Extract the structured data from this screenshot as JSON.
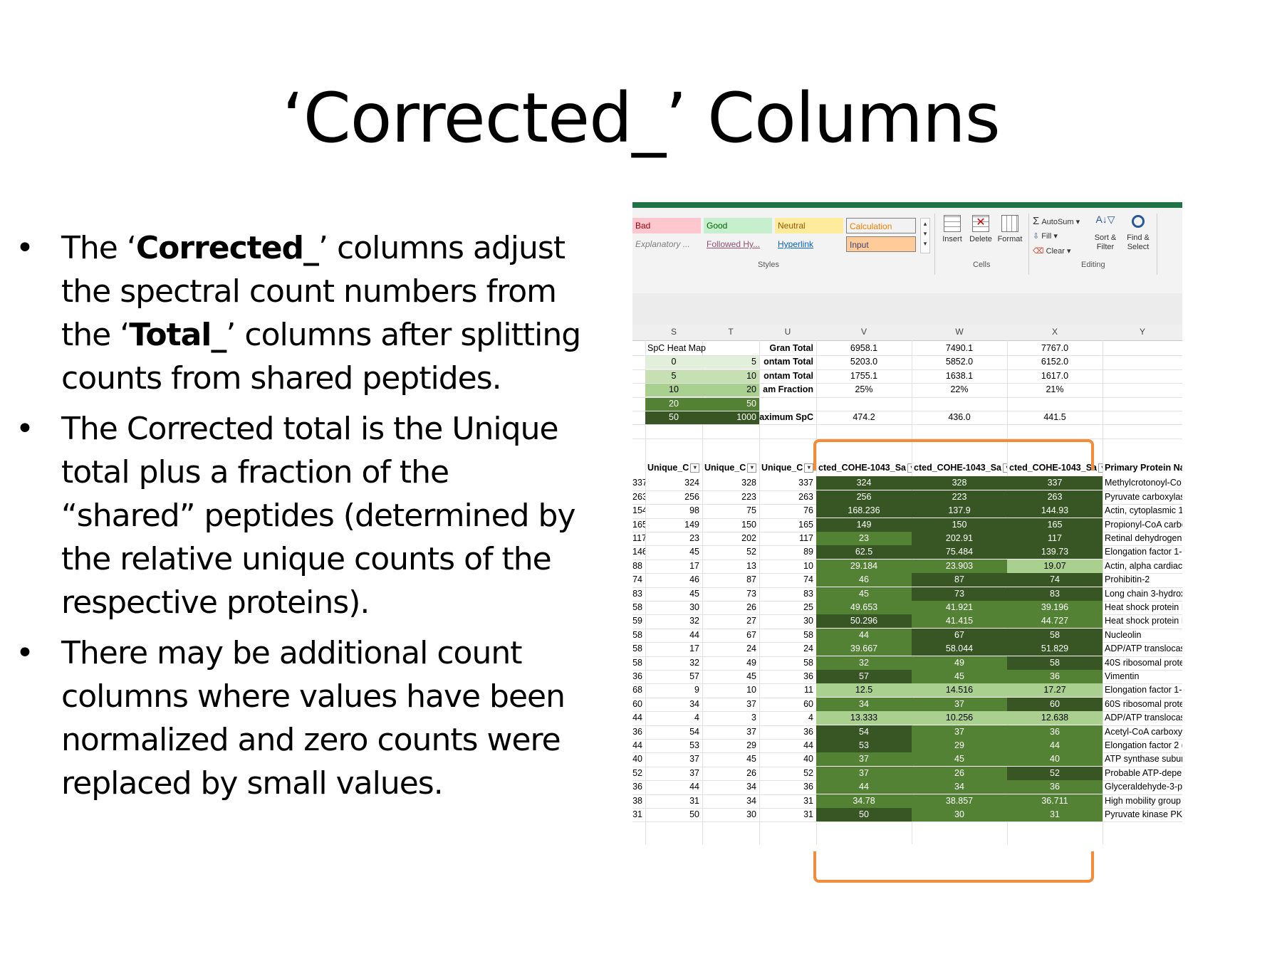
{
  "slide": {
    "title": "‘Corrected_’ Columns",
    "bullets": [
      {
        "pre": "The ‘",
        "b1": "Corrected_",
        "mid": "’ columns adjust the spectral count numbers from the ‘",
        "b2": "Total_",
        "post": "’ columns after splitting counts from shared peptides."
      },
      {
        "text": "The Corrected total is the Unique total plus a fraction of the “shared” peptides (determined by the relative unique counts of the respective proteins)."
      },
      {
        "text": "There may be additional count columns where values have been normalized and zero counts were replaced by small values."
      }
    ],
    "bullet_char": "•"
  },
  "ribbon": {
    "styles": {
      "bad": "Bad",
      "good": "Good",
      "neutral": "Neutral",
      "calculation": "Calculation",
      "explanatory": "Explanatory ...",
      "followed": "Followed Hy...",
      "hyperlink": "Hyperlink",
      "input": "Input",
      "group_label": "Styles"
    },
    "cells": {
      "insert": "Insert",
      "delete": "Delete",
      "format": "Format",
      "group_label": "Cells"
    },
    "editing": {
      "autosum": "AutoSum",
      "fill": "Fill",
      "clear": "Clear",
      "sort": "Sort & Filter",
      "find": "Find & Select",
      "group_label": "Editing"
    },
    "colors": {
      "bad_bg": "#ffc7ce",
      "bad_fg": "#9c0006",
      "good_bg": "#c6efce",
      "good_fg": "#006100",
      "neutral_bg": "#ffeb9c",
      "neutral_fg": "#9c5700",
      "calc_bg": "#f2f2f2",
      "calc_fg": "#fa7d00",
      "input_bg": "#ffcc99",
      "input_fg": "#3f3f76"
    }
  },
  "sheet": {
    "col_headers": [
      "S",
      "T",
      "U",
      "V",
      "W",
      "X",
      "Y"
    ],
    "heatmap_title": "SpC Heat Map",
    "heatmap_rows": [
      {
        "lo": "0",
        "hi": "5",
        "bg": "#e2efda"
      },
      {
        "lo": "5",
        "hi": "10",
        "bg": "#c6e0b4"
      },
      {
        "lo": "10",
        "hi": "20",
        "bg": "#a9d08e"
      },
      {
        "lo": "20",
        "hi": "50",
        "bg": "#548235"
      },
      {
        "lo": "50",
        "hi": "1000",
        "bg": "#375623"
      }
    ],
    "summary": [
      {
        "label": "Gran Total",
        "v": "6958.1",
        "w": "7490.1",
        "x": "7767.0"
      },
      {
        "label": "ontam Total",
        "v": "5203.0",
        "w": "5852.0",
        "x": "6152.0"
      },
      {
        "label": "ontam Total",
        "v": "1755.1",
        "w": "1638.1",
        "x": "1617.0"
      },
      {
        "label": "am Fraction",
        "v": "25%",
        "w": "22%",
        "x": "21%"
      },
      {
        "label": "",
        "v": "",
        "w": "",
        "x": ""
      },
      {
        "label": "aximum SpC",
        "v": "474.2",
        "w": "436.0",
        "x": "441.5"
      }
    ],
    "table_headers": [
      "",
      "Unique_C",
      "Unique_C",
      "Unique_C",
      "cted_COHE-1043_Sa",
      "cted_COHE-1043_Sa",
      "cted_COHE-1043_Sa",
      "Primary Protein Nar"
    ],
    "rows": [
      [
        "337",
        "324",
        "328",
        "337",
        "324",
        "328",
        "337",
        "Methylcrotonoyl-Co"
      ],
      [
        "263",
        "256",
        "223",
        "263",
        "256",
        "223",
        "263",
        "Pyruvate carboxylas"
      ],
      [
        "154",
        "98",
        "75",
        "76",
        "168.236",
        "137.9",
        "144.93",
        "Actin, cytoplasmic 1"
      ],
      [
        "165",
        "149",
        "150",
        "165",
        "149",
        "150",
        "165",
        "Propionyl-CoA carbo"
      ],
      [
        "117",
        "23",
        "202",
        "117",
        "23",
        "202.91",
        "117",
        "Retinal dehydrogen"
      ],
      [
        "146",
        "45",
        "52",
        "89",
        "62.5",
        "75.484",
        "139.73",
        "Elongation factor 1-"
      ],
      [
        "88",
        "17",
        "13",
        "10",
        "29.184",
        "23.903",
        "19.07",
        "Actin, alpha cardiac"
      ],
      [
        "74",
        "46",
        "87",
        "74",
        "46",
        "87",
        "74",
        "Prohibitin-2"
      ],
      [
        "83",
        "45",
        "73",
        "83",
        "45",
        "73",
        "83",
        "Long chain 3-hydrox"
      ],
      [
        "58",
        "30",
        "26",
        "25",
        "49.653",
        "41.921",
        "39.196",
        "Heat shock protein I"
      ],
      [
        "59",
        "32",
        "27",
        "30",
        "50.296",
        "41.415",
        "44.727",
        "Heat shock protein I"
      ],
      [
        "58",
        "44",
        "67",
        "58",
        "44",
        "67",
        "58",
        "Nucleolin"
      ],
      [
        "58",
        "17",
        "24",
        "24",
        "39.667",
        "58.044",
        "51.829",
        "ADP/ATP translocas"
      ],
      [
        "58",
        "32",
        "49",
        "58",
        "32",
        "49",
        "58",
        "40S ribosomal prote"
      ],
      [
        "36",
        "57",
        "45",
        "36",
        "57",
        "45",
        "36",
        "Vimentin"
      ],
      [
        "68",
        "9",
        "10",
        "11",
        "12.5",
        "14.516",
        "17.27",
        "Elongation factor 1-"
      ],
      [
        "60",
        "34",
        "37",
        "60",
        "34",
        "37",
        "60",
        "60S ribosomal prote"
      ],
      [
        "44",
        "4",
        "3",
        "4",
        "13.333",
        "10.256",
        "12.638",
        "ADP/ATP translocas"
      ],
      [
        "36",
        "54",
        "37",
        "36",
        "54",
        "37",
        "36",
        "Acetyl-CoA carboxy"
      ],
      [
        "44",
        "53",
        "29",
        "44",
        "53",
        "29",
        "44",
        "Elongation factor 2 ("
      ],
      [
        "40",
        "37",
        "45",
        "40",
        "37",
        "45",
        "40",
        "ATP synthase subun"
      ],
      [
        "52",
        "37",
        "26",
        "52",
        "37",
        "26",
        "52",
        "Probable ATP-depe"
      ],
      [
        "36",
        "44",
        "34",
        "36",
        "44",
        "34",
        "36",
        "Glyceraldehyde-3-p"
      ],
      [
        "38",
        "31",
        "34",
        "31",
        "34.78",
        "38.857",
        "36.711",
        "High mobility group"
      ],
      [
        "31",
        "50",
        "30",
        "31",
        "50",
        "30",
        "31",
        "Pyruvate kinase PKN"
      ]
    ],
    "heat_colors": {
      "dark": "#375623",
      "mid": "#548235",
      "light": "#a9d08e"
    },
    "bracket_color": "#f28c38"
  }
}
